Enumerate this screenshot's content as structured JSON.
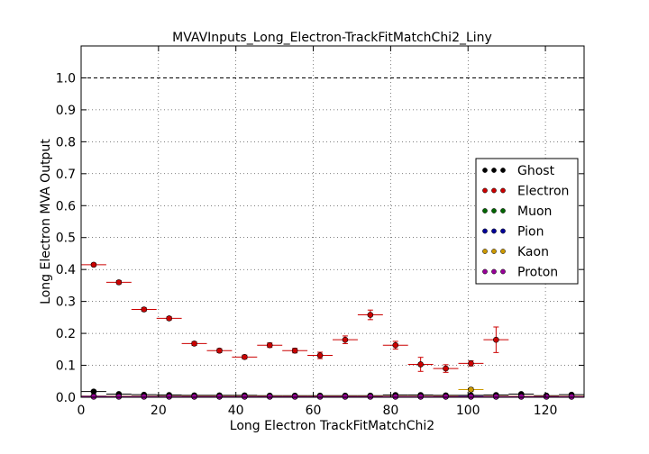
{
  "chart_data": {
    "type": "scatter",
    "title": "MVAVInputs_Long_Electron-TrackFitMatchChi2_Liny",
    "xlabel": "Long Electron TrackFitMatchChi2",
    "ylabel": "Long Electron MVA Output",
    "xlim": [
      0,
      130
    ],
    "ylim": [
      0,
      1.1
    ],
    "x_ticks": [
      "0",
      "20",
      "40",
      "60",
      "80",
      "100",
      "120"
    ],
    "y_ticks": [
      "0.0",
      "0.1",
      "0.2",
      "0.3",
      "0.4",
      "0.5",
      "0.6",
      "0.7",
      "0.8",
      "0.9",
      "1.0"
    ],
    "reference_line_y": 1.0,
    "grid": true,
    "legend_position": "center-right",
    "bin_half_width": 3.25,
    "series": [
      {
        "name": "Ghost",
        "color": "#000000",
        "points": [
          {
            "x": 3.25,
            "y": 0.018,
            "yerr": 0.003
          },
          {
            "x": 9.75,
            "y": 0.01,
            "yerr": 0.002
          },
          {
            "x": 16.25,
            "y": 0.008,
            "yerr": 0.002
          },
          {
            "x": 22.75,
            "y": 0.007,
            "yerr": 0.002
          },
          {
            "x": 29.25,
            "y": 0.006,
            "yerr": 0.002
          },
          {
            "x": 35.75,
            "y": 0.006,
            "yerr": 0.002
          },
          {
            "x": 42.25,
            "y": 0.006,
            "yerr": 0.002
          },
          {
            "x": 48.75,
            "y": 0.005,
            "yerr": 0.002
          },
          {
            "x": 55.25,
            "y": 0.005,
            "yerr": 0.002
          },
          {
            "x": 61.75,
            "y": 0.005,
            "yerr": 0.002
          },
          {
            "x": 68.25,
            "y": 0.005,
            "yerr": 0.002
          },
          {
            "x": 74.75,
            "y": 0.005,
            "yerr": 0.002
          },
          {
            "x": 81.25,
            "y": 0.007,
            "yerr": 0.002
          },
          {
            "x": 87.75,
            "y": 0.007,
            "yerr": 0.002
          },
          {
            "x": 94.25,
            "y": 0.006,
            "yerr": 0.002
          },
          {
            "x": 100.75,
            "y": 0.006,
            "yerr": 0.002
          },
          {
            "x": 107.25,
            "y": 0.007,
            "yerr": 0.002
          },
          {
            "x": 113.75,
            "y": 0.01,
            "yerr": 0.003
          },
          {
            "x": 120.25,
            "y": 0.005,
            "yerr": 0.002
          },
          {
            "x": 126.75,
            "y": 0.008,
            "yerr": 0.003
          }
        ]
      },
      {
        "name": "Electron",
        "color": "#cc0000",
        "points": [
          {
            "x": 3.25,
            "y": 0.415,
            "yerr": 0.004
          },
          {
            "x": 9.75,
            "y": 0.36,
            "yerr": 0.005
          },
          {
            "x": 16.25,
            "y": 0.275,
            "yerr": 0.005
          },
          {
            "x": 22.75,
            "y": 0.247,
            "yerr": 0.005
          },
          {
            "x": 29.25,
            "y": 0.168,
            "yerr": 0.006
          },
          {
            "x": 35.75,
            "y": 0.146,
            "yerr": 0.006
          },
          {
            "x": 42.25,
            "y": 0.126,
            "yerr": 0.006
          },
          {
            "x": 48.75,
            "y": 0.163,
            "yerr": 0.007
          },
          {
            "x": 55.25,
            "y": 0.146,
            "yerr": 0.007
          },
          {
            "x": 61.75,
            "y": 0.131,
            "yerr": 0.01
          },
          {
            "x": 68.25,
            "y": 0.18,
            "yerr": 0.012
          },
          {
            "x": 74.75,
            "y": 0.258,
            "yerr": 0.015
          },
          {
            "x": 81.25,
            "y": 0.163,
            "yerr": 0.012
          },
          {
            "x": 87.75,
            "y": 0.103,
            "yerr": 0.022
          },
          {
            "x": 94.25,
            "y": 0.09,
            "yerr": 0.012
          },
          {
            "x": 100.75,
            "y": 0.106,
            "yerr": 0.008
          },
          {
            "x": 107.25,
            "y": 0.18,
            "yerr": 0.04
          }
        ]
      },
      {
        "name": "Muon",
        "color": "#006600",
        "points": [
          {
            "x": 3.25,
            "y": 0.002,
            "yerr": 0.001
          },
          {
            "x": 9.75,
            "y": 0.002,
            "yerr": 0.001
          },
          {
            "x": 16.25,
            "y": 0.002,
            "yerr": 0.001
          },
          {
            "x": 22.75,
            "y": 0.002,
            "yerr": 0.001
          },
          {
            "x": 29.25,
            "y": 0.002,
            "yerr": 0.001
          },
          {
            "x": 35.75,
            "y": 0.002,
            "yerr": 0.001
          },
          {
            "x": 42.25,
            "y": 0.002,
            "yerr": 0.001
          },
          {
            "x": 48.75,
            "y": 0.002,
            "yerr": 0.001
          },
          {
            "x": 55.25,
            "y": 0.002,
            "yerr": 0.001
          },
          {
            "x": 61.75,
            "y": 0.002,
            "yerr": 0.001
          },
          {
            "x": 68.25,
            "y": 0.002,
            "yerr": 0.001
          },
          {
            "x": 74.75,
            "y": 0.002,
            "yerr": 0.001
          },
          {
            "x": 81.25,
            "y": 0.002,
            "yerr": 0.001
          },
          {
            "x": 87.75,
            "y": 0.002,
            "yerr": 0.001
          },
          {
            "x": 94.25,
            "y": 0.002,
            "yerr": 0.001
          },
          {
            "x": 100.75,
            "y": 0.002,
            "yerr": 0.001
          },
          {
            "x": 107.25,
            "y": 0.002,
            "yerr": 0.001
          },
          {
            "x": 113.75,
            "y": 0.002,
            "yerr": 0.001
          },
          {
            "x": 120.25,
            "y": 0.002,
            "yerr": 0.001
          },
          {
            "x": 126.75,
            "y": 0.002,
            "yerr": 0.001
          }
        ]
      },
      {
        "name": "Pion",
        "color": "#000099",
        "points": [
          {
            "x": 3.25,
            "y": 0.004,
            "yerr": 0.001
          },
          {
            "x": 9.75,
            "y": 0.003,
            "yerr": 0.001
          },
          {
            "x": 16.25,
            "y": 0.003,
            "yerr": 0.001
          },
          {
            "x": 22.75,
            "y": 0.003,
            "yerr": 0.001
          },
          {
            "x": 29.25,
            "y": 0.002,
            "yerr": 0.001
          },
          {
            "x": 35.75,
            "y": 0.002,
            "yerr": 0.001
          },
          {
            "x": 42.25,
            "y": 0.002,
            "yerr": 0.001
          },
          {
            "x": 48.75,
            "y": 0.002,
            "yerr": 0.001
          },
          {
            "x": 55.25,
            "y": 0.002,
            "yerr": 0.001
          },
          {
            "x": 61.75,
            "y": 0.002,
            "yerr": 0.001
          },
          {
            "x": 68.25,
            "y": 0.002,
            "yerr": 0.001
          },
          {
            "x": 74.75,
            "y": 0.002,
            "yerr": 0.001
          },
          {
            "x": 81.25,
            "y": 0.002,
            "yerr": 0.001
          },
          {
            "x": 87.75,
            "y": 0.002,
            "yerr": 0.001
          },
          {
            "x": 94.25,
            "y": 0.002,
            "yerr": 0.001
          },
          {
            "x": 100.75,
            "y": 0.002,
            "yerr": 0.001
          },
          {
            "x": 107.25,
            "y": 0.002,
            "yerr": 0.001
          },
          {
            "x": 113.75,
            "y": 0.002,
            "yerr": 0.001
          },
          {
            "x": 120.25,
            "y": 0.002,
            "yerr": 0.001
          },
          {
            "x": 126.75,
            "y": 0.002,
            "yerr": 0.001
          }
        ]
      },
      {
        "name": "Kaon",
        "color": "#cc9900",
        "points": [
          {
            "x": 3.25,
            "y": 0.003,
            "yerr": 0.001
          },
          {
            "x": 9.75,
            "y": 0.003,
            "yerr": 0.001
          },
          {
            "x": 16.25,
            "y": 0.003,
            "yerr": 0.001
          },
          {
            "x": 22.75,
            "y": 0.003,
            "yerr": 0.001
          },
          {
            "x": 29.25,
            "y": 0.003,
            "yerr": 0.001
          },
          {
            "x": 35.75,
            "y": 0.003,
            "yerr": 0.001
          },
          {
            "x": 42.25,
            "y": 0.003,
            "yerr": 0.001
          },
          {
            "x": 48.75,
            "y": 0.003,
            "yerr": 0.001
          },
          {
            "x": 55.25,
            "y": 0.003,
            "yerr": 0.001
          },
          {
            "x": 61.75,
            "y": 0.003,
            "yerr": 0.001
          },
          {
            "x": 68.25,
            "y": 0.003,
            "yerr": 0.001
          },
          {
            "x": 74.75,
            "y": 0.003,
            "yerr": 0.001
          },
          {
            "x": 81.25,
            "y": 0.003,
            "yerr": 0.001
          },
          {
            "x": 87.75,
            "y": 0.003,
            "yerr": 0.001
          },
          {
            "x": 94.25,
            "y": 0.003,
            "yerr": 0.001
          },
          {
            "x": 100.75,
            "y": 0.024,
            "yerr": 0.006
          },
          {
            "x": 107.25,
            "y": 0.003,
            "yerr": 0.001
          },
          {
            "x": 113.75,
            "y": 0.003,
            "yerr": 0.001
          },
          {
            "x": 120.25,
            "y": 0.003,
            "yerr": 0.001
          },
          {
            "x": 126.75,
            "y": 0.003,
            "yerr": 0.001
          }
        ]
      },
      {
        "name": "Proton",
        "color": "#990099",
        "points": [
          {
            "x": 3.25,
            "y": 0.002,
            "yerr": 0.001
          },
          {
            "x": 9.75,
            "y": 0.002,
            "yerr": 0.001
          },
          {
            "x": 16.25,
            "y": 0.002,
            "yerr": 0.001
          },
          {
            "x": 22.75,
            "y": 0.002,
            "yerr": 0.001
          },
          {
            "x": 29.25,
            "y": 0.002,
            "yerr": 0.001
          },
          {
            "x": 35.75,
            "y": 0.002,
            "yerr": 0.001
          },
          {
            "x": 42.25,
            "y": 0.002,
            "yerr": 0.001
          },
          {
            "x": 48.75,
            "y": 0.002,
            "yerr": 0.001
          },
          {
            "x": 55.25,
            "y": 0.002,
            "yerr": 0.001
          },
          {
            "x": 61.75,
            "y": 0.002,
            "yerr": 0.001
          },
          {
            "x": 68.25,
            "y": 0.002,
            "yerr": 0.001
          },
          {
            "x": 74.75,
            "y": 0.002,
            "yerr": 0.001
          },
          {
            "x": 81.25,
            "y": 0.002,
            "yerr": 0.001
          },
          {
            "x": 87.75,
            "y": 0.002,
            "yerr": 0.001
          },
          {
            "x": 94.25,
            "y": 0.002,
            "yerr": 0.001
          },
          {
            "x": 100.75,
            "y": 0.002,
            "yerr": 0.001
          },
          {
            "x": 107.25,
            "y": 0.002,
            "yerr": 0.001
          },
          {
            "x": 113.75,
            "y": 0.002,
            "yerr": 0.001
          },
          {
            "x": 120.25,
            "y": 0.002,
            "yerr": 0.001
          },
          {
            "x": 126.75,
            "y": 0.002,
            "yerr": 0.001
          }
        ]
      }
    ]
  }
}
